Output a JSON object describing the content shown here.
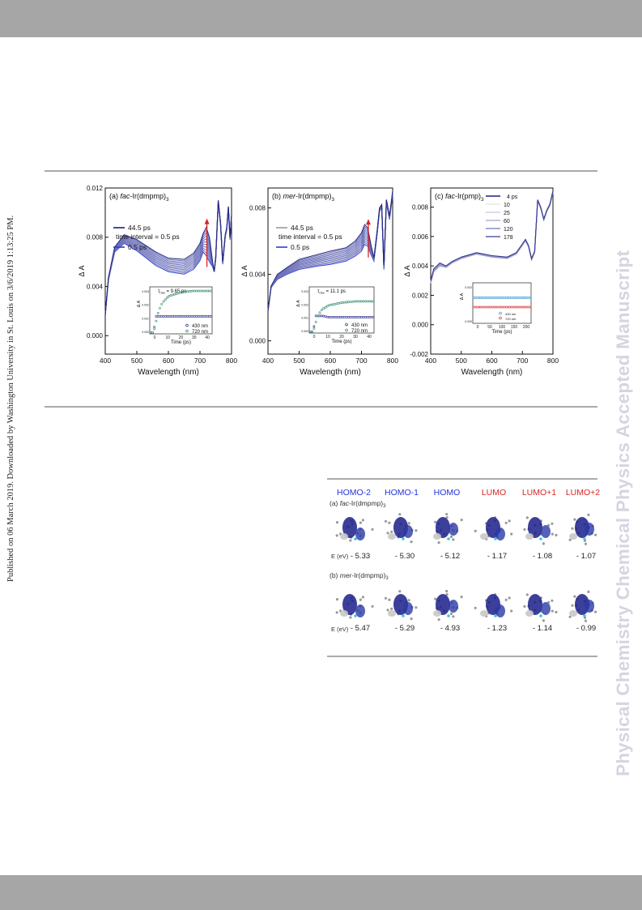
{
  "side_text": {
    "left": "Published on 06 March 2019. Downloaded by Washington University in St. Louis on 3/6/2019 1:13:25 PM.",
    "right": "Physical Chemistry Chemical Physics Accepted Manuscript"
  },
  "colors": {
    "bar": "#a6a6a6",
    "watermark": "#d5d5e1",
    "homo": "#2233dd",
    "lumo": "#dd2222"
  },
  "chart_data": [
    {
      "type": "line",
      "title": "(a) fac-Ir(dmpmp)3",
      "title_prefix": "(a) ",
      "title_italic": "fac",
      "title_rest": "-Ir(dmpmp)",
      "title_sub": "3",
      "xlabel": "Wavelength (nm)",
      "ylabel": "Δ A",
      "xlim": [
        400,
        800
      ],
      "ylim": [
        -0.0015,
        0.012
      ],
      "xticks": [
        "400",
        "500",
        "600",
        "700",
        "800"
      ],
      "yticks": [
        {
          "v": 0.0,
          "t": "0.000"
        },
        {
          "v": 0.004,
          "t": "0.004"
        },
        {
          "v": 0.008,
          "t": "0.008"
        },
        {
          "v": 0.012,
          "t": "0.012"
        }
      ],
      "legend": [
        "44.5 ps",
        "time interval = 0.5 ps",
        "0.5 ps"
      ],
      "series": [
        {
          "name": "44.5 ps",
          "x": [
            400,
            410,
            430,
            460,
            500,
            560,
            600,
            650,
            680,
            700,
            710,
            720,
            730,
            740,
            745,
            750,
            758,
            765,
            772,
            780,
            785,
            790,
            795,
            800
          ],
          "y": [
            0.0017,
            0.0047,
            0.0072,
            0.0082,
            0.0078,
            0.0068,
            0.0063,
            0.0062,
            0.0067,
            0.0075,
            0.0083,
            0.0088,
            0.008,
            0.006,
            0.0052,
            0.0065,
            0.011,
            0.0092,
            0.006,
            0.0082,
            0.0088,
            0.0105,
            0.008,
            0.0098
          ]
        },
        {
          "name": "0.5 ps",
          "x": [
            400,
            410,
            430,
            460,
            500,
            560,
            600,
            650,
            680,
            700,
            710,
            720,
            730,
            740,
            745,
            750,
            758,
            765,
            772,
            780,
            785,
            790,
            795,
            800
          ],
          "y": [
            0.0017,
            0.0045,
            0.0068,
            0.0075,
            0.0069,
            0.0057,
            0.0052,
            0.005,
            0.0054,
            0.0061,
            0.0068,
            0.0065,
            0.006,
            0.0056,
            0.0052,
            0.0062,
            0.0108,
            0.009,
            0.0058,
            0.008,
            0.0086,
            0.0103,
            0.0078,
            0.0096
          ]
        }
      ],
      "inset": {
        "label": "τ rise = 9.65 ps",
        "tau_symbol": "τ",
        "tau_sub": "rise",
        "tau_value": "= 9.65 ps",
        "xlabel": "Time (ps)",
        "ylabel": "Δ A",
        "xticks": [
          "0",
          "10",
          "20",
          "30",
          "40"
        ],
        "yticks": [
          "0.000",
          "0.001",
          "0.002",
          "0.003"
        ],
        "xlim": [
          -5,
          45
        ],
        "ylim": [
          0,
          0.0035
        ],
        "legend": [
          "430 nm",
          "720 nm"
        ],
        "series": [
          {
            "name": "430 nm",
            "x": [
              -5,
              -2,
              0,
              2,
              5,
              10,
              20,
              30,
              40,
              45
            ],
            "y": [
              0.0001,
              0.0001,
              0.0013,
              0.0013,
              0.0013,
              0.0013,
              0.0013,
              0.0013,
              0.0013,
              0.0013
            ]
          },
          {
            "name": "720 nm",
            "x": [
              -5,
              -2,
              0,
              2,
              5,
              10,
              20,
              30,
              40,
              45
            ],
            "y": [
              0.0001,
              0.0001,
              0.0009,
              0.0017,
              0.0023,
              0.0028,
              0.0031,
              0.0032,
              0.0032,
              0.0032
            ]
          }
        ]
      }
    },
    {
      "type": "line",
      "title": "(b) mer-Ir(dmpmp)3",
      "title_prefix": "(b) ",
      "title_italic": "mer",
      "title_rest": "-Ir(dmpmp)",
      "title_sub": "3",
      "xlabel": "Wavelength (nm)",
      "ylabel": "Δ A",
      "xlim": [
        400,
        800
      ],
      "ylim": [
        -0.0008,
        0.0092
      ],
      "xticks": [
        "400",
        "500",
        "600",
        "700",
        "800"
      ],
      "yticks": [
        {
          "v": 0.0,
          "t": "0.000"
        },
        {
          "v": 0.004,
          "t": "0.004"
        },
        {
          "v": 0.008,
          "t": "0.008"
        }
      ],
      "legend": [
        "44.5 ps",
        "time interval = 0.5 ps",
        "0.5 ps"
      ],
      "series": [
        {
          "name": "44.5 ps",
          "x": [
            400,
            410,
            430,
            460,
            500,
            560,
            600,
            650,
            680,
            700,
            710,
            720,
            730,
            740,
            750,
            758,
            765,
            772,
            780,
            790,
            800
          ],
          "y": [
            0.0018,
            0.0033,
            0.004,
            0.0044,
            0.0049,
            0.0052,
            0.0054,
            0.0056,
            0.006,
            0.0065,
            0.007,
            0.0068,
            0.0058,
            0.005,
            0.0066,
            0.008,
            0.0082,
            0.0045,
            0.0085,
            0.0075,
            0.009
          ]
        },
        {
          "name": "0.5 ps",
          "x": [
            400,
            410,
            430,
            460,
            500,
            560,
            600,
            650,
            680,
            700,
            710,
            720,
            730,
            740,
            750,
            758,
            765,
            772,
            780,
            790,
            800
          ],
          "y": [
            0.0018,
            0.0032,
            0.0037,
            0.004,
            0.0043,
            0.0045,
            0.0046,
            0.0048,
            0.0051,
            0.0054,
            0.0058,
            0.0057,
            0.0052,
            0.0048,
            0.0064,
            0.0078,
            0.008,
            0.0043,
            0.0083,
            0.0073,
            0.0088
          ]
        }
      ],
      "inset": {
        "label": "τ rise = 11.1 ps",
        "tau_symbol": "τ",
        "tau_sub": "rise",
        "tau_value": "= 11.1 ps",
        "xlabel": "Time (ps)",
        "ylabel": "Δ A",
        "xticks": [
          "0",
          "10",
          "20",
          "30",
          "40"
        ],
        "yticks": [
          "0.000",
          "0.001",
          "0.002",
          "0.003"
        ],
        "xlim": [
          -5,
          45
        ],
        "ylim": [
          0,
          0.0035
        ],
        "legend": [
          "430 nm",
          "720 nm"
        ],
        "series": [
          {
            "name": "430 nm",
            "x": [
              -5,
              -2,
              0,
              2,
              5,
              10,
              20,
              30,
              40,
              45
            ],
            "y": [
              0.0001,
              0.0001,
              0.0013,
              0.0013,
              0.0013,
              0.0012,
              0.0012,
              0.0012,
              0.0012,
              0.0012
            ]
          },
          {
            "name": "720 nm",
            "x": [
              -5,
              -2,
              0,
              2,
              5,
              10,
              20,
              30,
              40,
              45
            ],
            "y": [
              0.0001,
              0.0001,
              0.0008,
              0.0014,
              0.0018,
              0.0021,
              0.0023,
              0.0024,
              0.0024,
              0.0024
            ]
          }
        ]
      }
    },
    {
      "type": "line",
      "title": "(c) fac-Ir(pmp)3",
      "title_prefix": "(c) ",
      "title_italic": "fac",
      "title_rest": "-Ir(pmp)",
      "title_sub": "3",
      "xlabel": "Wavelength (nm)",
      "ylabel": "Δ A",
      "xlim": [
        400,
        800
      ],
      "ylim": [
        -0.002,
        0.0093
      ],
      "xticks": [
        "400",
        "500",
        "600",
        "700",
        "800"
      ],
      "yticks": [
        {
          "v": -0.002,
          "t": "-0.002"
        },
        {
          "v": 0.0,
          "t": "0.000"
        },
        {
          "v": 0.002,
          "t": "0.002"
        },
        {
          "v": 0.004,
          "t": "0.004"
        },
        {
          "v": 0.006,
          "t": "0.006"
        },
        {
          "v": 0.008,
          "t": "0.008"
        }
      ],
      "legend": [
        "4 ps",
        "10",
        "25",
        "60",
        "120",
        "178"
      ],
      "series": [
        {
          "name": "4 ps",
          "x": [
            400,
            410,
            430,
            450,
            470,
            500,
            550,
            600,
            650,
            680,
            700,
            710,
            720,
            730,
            740,
            750,
            760,
            770,
            780,
            790,
            800
          ],
          "y": [
            0.003,
            0.0038,
            0.0042,
            0.004,
            0.0043,
            0.0046,
            0.0049,
            0.0047,
            0.0046,
            0.0049,
            0.0055,
            0.0058,
            0.0054,
            0.0045,
            0.005,
            0.0085,
            0.008,
            0.0072,
            0.0078,
            0.0082,
            0.0091
          ]
        },
        {
          "name": "178",
          "x": [
            400,
            410,
            430,
            450,
            470,
            500,
            550,
            600,
            650,
            680,
            700,
            710,
            720,
            730,
            740,
            750,
            760,
            770,
            780,
            790,
            800
          ],
          "y": [
            0.0028,
            0.0036,
            0.004,
            0.0039,
            0.0042,
            0.0045,
            0.0048,
            0.0046,
            0.0045,
            0.0048,
            0.0054,
            0.0057,
            0.0053,
            0.0044,
            0.0049,
            0.0084,
            0.0079,
            0.0071,
            0.0077,
            0.0081,
            0.009
          ]
        }
      ],
      "inset": {
        "xlabel": "Time (ps)",
        "ylabel": "Δ A",
        "xticks": [
          "0",
          "50",
          "100",
          "150",
          "200"
        ],
        "yticks": [
          "0.000",
          "0.002"
        ],
        "xlim": [
          -10,
          200
        ],
        "ylim": [
          0,
          0.003
        ],
        "legend": [
          "430 nm",
          "720 nm"
        ],
        "series": [
          {
            "name": "430 nm",
            "x": [
              -5,
              0,
              5,
              20,
              50,
              100,
              150,
              190
            ],
            "y": [
              0.0019,
              0.0019,
              0.0019,
              0.0019,
              0.0019,
              0.0019,
              0.0019,
              0.0019
            ]
          },
          {
            "name": "720 nm",
            "x": [
              -5,
              0,
              5,
              20,
              50,
              100,
              150,
              190
            ],
            "y": [
              0.0012,
              0.0012,
              0.0012,
              0.0012,
              0.0012,
              0.0012,
              0.0012,
              0.0012
            ]
          }
        ]
      }
    }
  ],
  "orbitals": {
    "columns": [
      {
        "label": "HOMO-2",
        "kind": "homo"
      },
      {
        "label": "HOMO-1",
        "kind": "homo"
      },
      {
        "label": "HOMO",
        "kind": "homo"
      },
      {
        "label": "LUMO",
        "kind": "lumo"
      },
      {
        "label": "LUMO+1",
        "kind": "lumo"
      },
      {
        "label": "LUMO+2",
        "kind": "lumo"
      }
    ],
    "rows": [
      {
        "prefix": "(a) ",
        "italic": "fac",
        "rest": "-Ir(dmpmp)",
        "sub": "3",
        "energy_label": "E (eV)",
        "energies": [
          "- 5.33",
          "- 5.30",
          "- 5.12",
          "- 1.17",
          "- 1.08",
          "- 1.07"
        ]
      },
      {
        "prefix": "(b) ",
        "italic": "mer",
        "rest": "-Ir(dmpmp)",
        "sub": "3",
        "energy_label": "E (eV)",
        "energies": [
          "- 5.47",
          "- 5.29",
          "- 4.93",
          "- 1.23",
          "- 1.14",
          "- 0.99"
        ]
      }
    ]
  }
}
